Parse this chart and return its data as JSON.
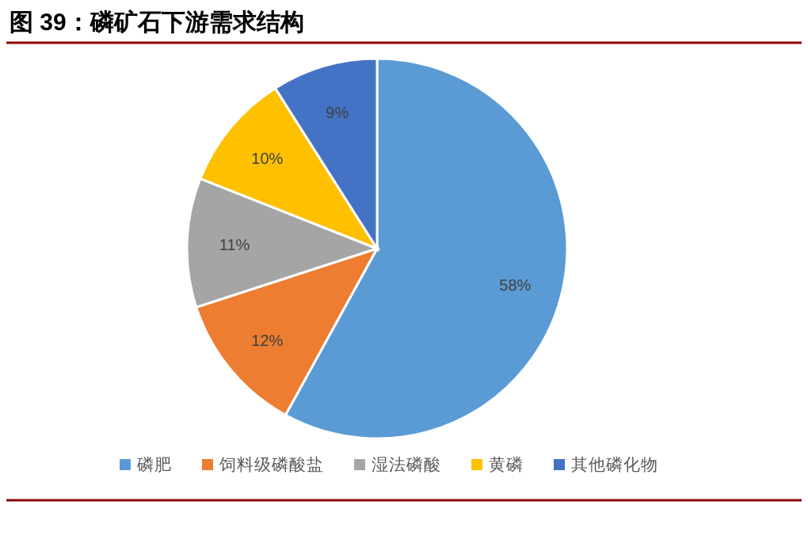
{
  "chart_data": {
    "type": "pie",
    "title": "图 39：磷矿石下游需求结构",
    "categories": [
      "磷肥",
      "饲料级磷酸盐",
      "湿法磷酸",
      "黄磷",
      "其他磷化物"
    ],
    "values": [
      58,
      12,
      11,
      10,
      9
    ],
    "colors": [
      "#5b9bd5",
      "#ed7d31",
      "#a5a5a5",
      "#ffc000",
      "#4472c4"
    ],
    "value_labels": [
      "58%",
      "12%",
      "11%",
      "10%",
      "9%"
    ],
    "legend": "bottom"
  }
}
